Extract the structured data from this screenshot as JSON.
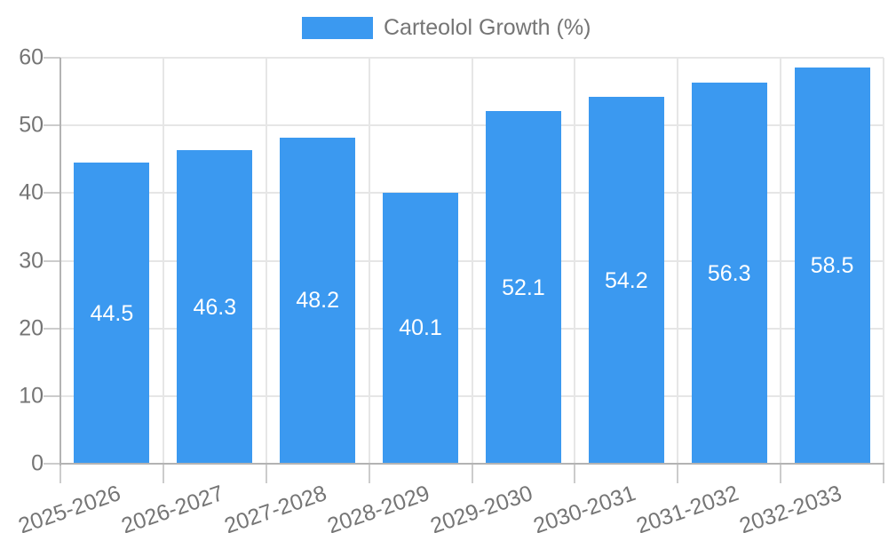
{
  "chart_data": {
    "type": "bar",
    "title": "",
    "legend": {
      "label": "Carteolol Growth (%)",
      "position": "top"
    },
    "categories": [
      "2025-2026",
      "2026-2027",
      "2027-2028",
      "2028-2029",
      "2029-2030",
      "2030-2031",
      "2031-2032",
      "2032-2033"
    ],
    "series": [
      {
        "name": "Carteolol Growth (%)",
        "values": [
          44.5,
          46.3,
          48.2,
          40.1,
          52.1,
          54.2,
          56.3,
          58.5
        ]
      }
    ],
    "value_label_decimals": 1,
    "xlabel": "",
    "ylabel": "",
    "ylim": [
      0,
      60
    ],
    "yticks": [
      0,
      10,
      20,
      30,
      40,
      50,
      60
    ],
    "grid": true,
    "legend_position": "top-center",
    "colors": {
      "bar": "#3B99F0",
      "text": "#757575",
      "gridline": "#e6e6e6",
      "axis": "#b3b3b3",
      "tick": "#cccccc",
      "value_label": "#ffffff",
      "background": "#ffffff"
    }
  }
}
